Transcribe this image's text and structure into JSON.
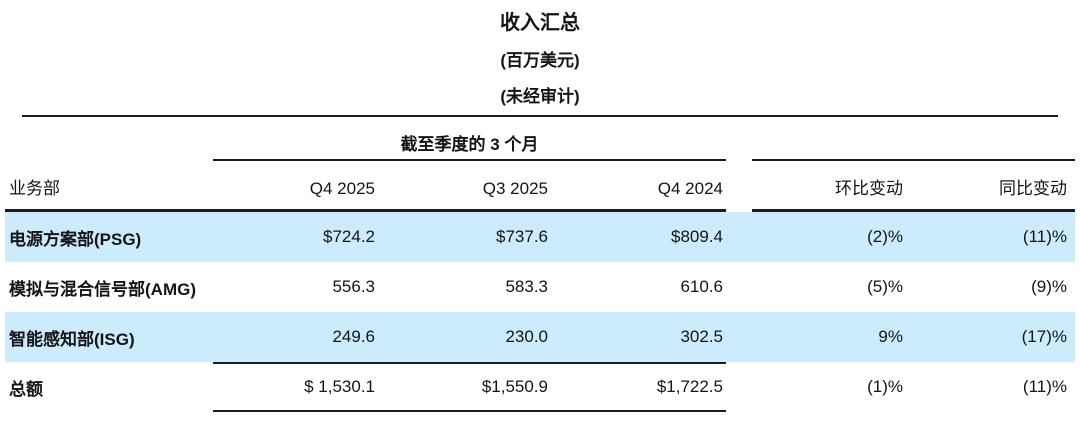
{
  "title": {
    "main": "收入汇总",
    "unit": "(百万美元)",
    "audit": "(未经审计)"
  },
  "table": {
    "spanner": "截至季度的 3 个月",
    "columns": {
      "business": "业务部",
      "q4_2025": "Q4 2025",
      "q3_2025": "Q3 2025",
      "q4_2024": "Q4 2024",
      "qoq": "环比变动",
      "yoy": "同比变动"
    },
    "rows": [
      {
        "label": "电源方案部(PSG)",
        "q4_2025": "$724.2",
        "q3_2025": "$737.6",
        "q4_2024": "$809.4",
        "qoq": "(2)%",
        "yoy": "(11)%",
        "highlight": true
      },
      {
        "label": "模拟与混合信号部(AMG)",
        "q4_2025": "556.3",
        "q3_2025": "583.3",
        "q4_2024": "610.6",
        "qoq": "(5)%",
        "yoy": "(9)%",
        "highlight": false
      },
      {
        "label": "智能感知部(ISG)",
        "q4_2025": "249.6",
        "q3_2025": "230.0",
        "q4_2024": "302.5",
        "qoq": "9%",
        "yoy": "(17)%",
        "highlight": true
      },
      {
        "label": "总额",
        "q4_2025": "$ 1,530.1",
        "q3_2025": "$1,550.9",
        "q4_2024": "$1,722.5",
        "qoq": "(1)%",
        "yoy": "(11)%",
        "highlight": false
      }
    ],
    "colors": {
      "highlight_row": "#ccebfc",
      "rule": "#1c1c1c"
    }
  }
}
